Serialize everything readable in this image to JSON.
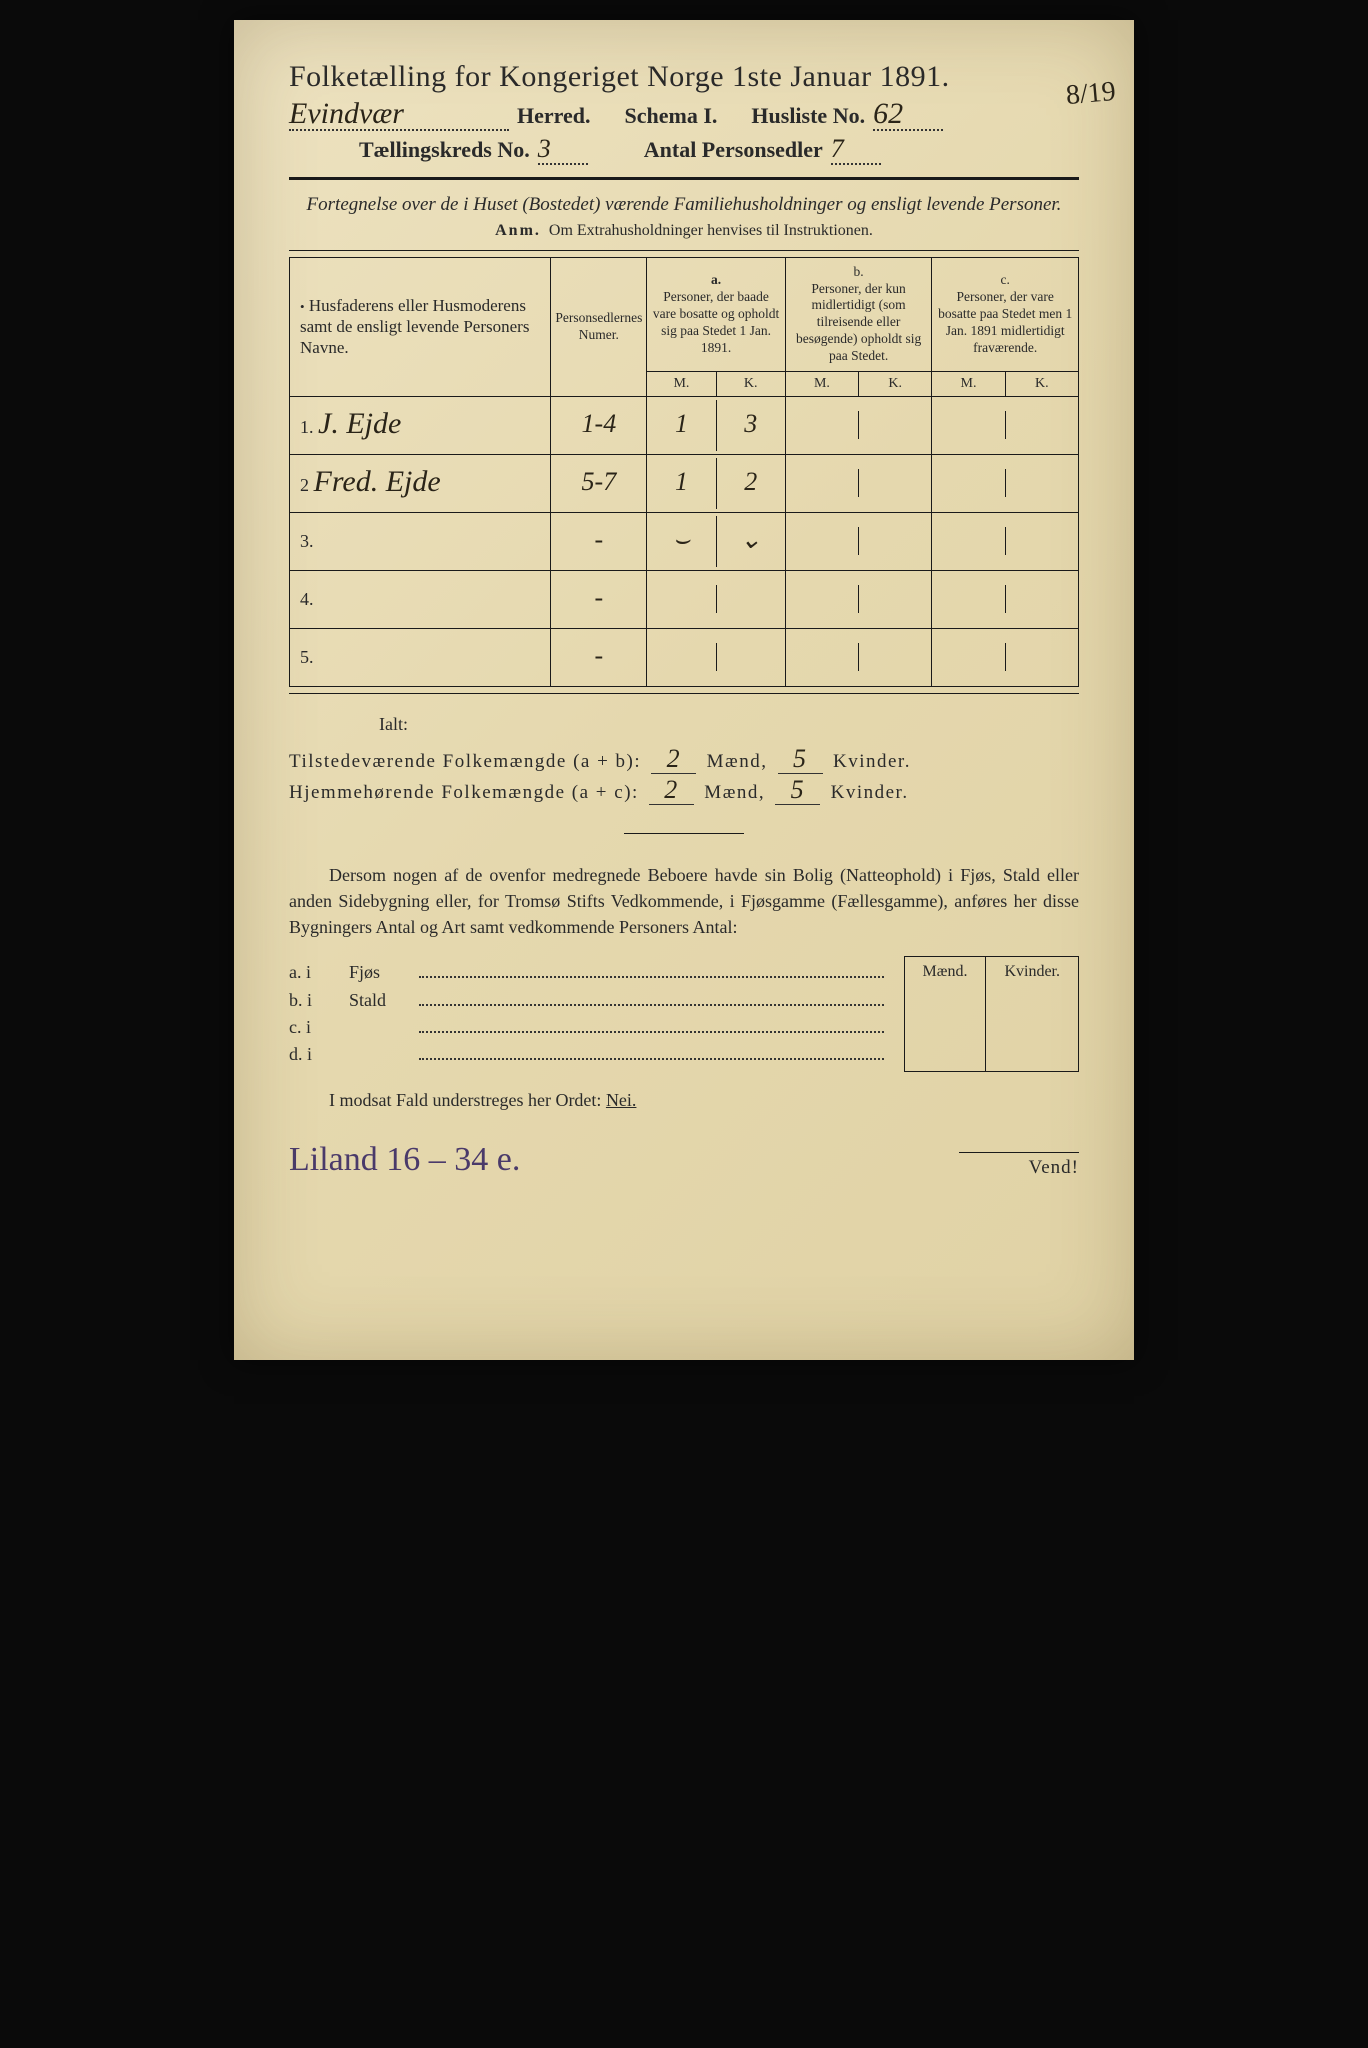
{
  "title": "Folketælling for Kongeriget Norge 1ste Januar 1891.",
  "herred_hand": "Evindvær",
  "herred_label": "Herred.",
  "schema_label": "Schema I.",
  "husliste_label": "Husliste No.",
  "husliste_no": "62",
  "marginal_note": "8/19",
  "kreds_label": "Tællingskreds No.",
  "kreds_no": "3",
  "antal_label": "Antal Personsedler",
  "antal_no": "7",
  "subtitle": "Fortegnelse over de i Huset (Bostedet) værende Familiehusholdninger og ensligt levende Personer.",
  "anm_prefix": "Anm.",
  "anm_text": "Om Extrahusholdninger henvises til Instruktionen.",
  "col1": "Husfaderens eller Husmoderens samt de ensligt levende Personers Navne.",
  "col2": "Personsedlernes Numer.",
  "col_a_label": "a.",
  "col_a": "Personer, der baade vare bosatte og opholdt sig paa Stedet 1 Jan. 1891.",
  "col_b_label": "b.",
  "col_b": "Personer, der kun midlertidigt (som tilreisende eller besøgende) opholdt sig paa Stedet.",
  "col_c_label": "c.",
  "col_c": "Personer, der vare bosatte paa Stedet men 1 Jan. 1891 midlertidigt fraværende.",
  "mk_m": "M.",
  "mk_k": "K.",
  "rows": [
    {
      "n": "1.",
      "name": "J. Ejde",
      "numer": "1-4",
      "am": "1",
      "ak": "3",
      "bm": "",
      "bk": "",
      "cm": "",
      "ck": ""
    },
    {
      "n": "2",
      "name": "Fred. Ejde",
      "numer": "5-7",
      "am": "1",
      "ak": "2",
      "bm": "",
      "bk": "",
      "cm": "",
      "ck": ""
    },
    {
      "n": "3.",
      "name": "",
      "numer": "-",
      "am": "⌣",
      "ak": "⌄",
      "bm": "",
      "bk": "",
      "cm": "",
      "ck": ""
    },
    {
      "n": "4.",
      "name": "",
      "numer": "-",
      "am": "",
      "ak": "",
      "bm": "",
      "bk": "",
      "cm": "",
      "ck": ""
    },
    {
      "n": "5.",
      "name": "",
      "numer": "-",
      "am": "",
      "ak": "",
      "bm": "",
      "bk": "",
      "cm": "",
      "ck": ""
    }
  ],
  "ialt": "Ialt:",
  "sum1_label": "Tilstedeværende Folkemængde (a + b):",
  "sum2_label": "Hjemmehørende Folkemængde (a + c):",
  "maend": "Mænd,",
  "kvinder": "Kvinder.",
  "sum_m": "2",
  "sum_k": "5",
  "para": "Dersom nogen af de ovenfor medregnede Beboere havde sin Bolig (Natteophold) i Fjøs, Stald eller anden Sidebygning eller, for Tromsø Stifts Vedkommende, i Fjøsgamme (Fællesgamme), anføres her disse Bygningers Antal og Art samt vedkommende Personers Antal:",
  "buildings": [
    {
      "l": "a.  i",
      "n": "Fjøs"
    },
    {
      "l": "b.  i",
      "n": "Stald"
    },
    {
      "l": "c.  i",
      "n": ""
    },
    {
      "l": "d.  i",
      "n": ""
    }
  ],
  "mk_head_m": "Mænd.",
  "mk_head_k": "Kvinder.",
  "nei_line": "I modsat Fald understreges her Ordet: ",
  "nei": "Nei.",
  "archive": "Liland 16 – 34 e.",
  "vend": "Vend!",
  "colors": {
    "paper": "#e8dcb8",
    "ink": "#2a2a2a",
    "hand": "#2a2418",
    "archive": "#4a3a6a"
  }
}
